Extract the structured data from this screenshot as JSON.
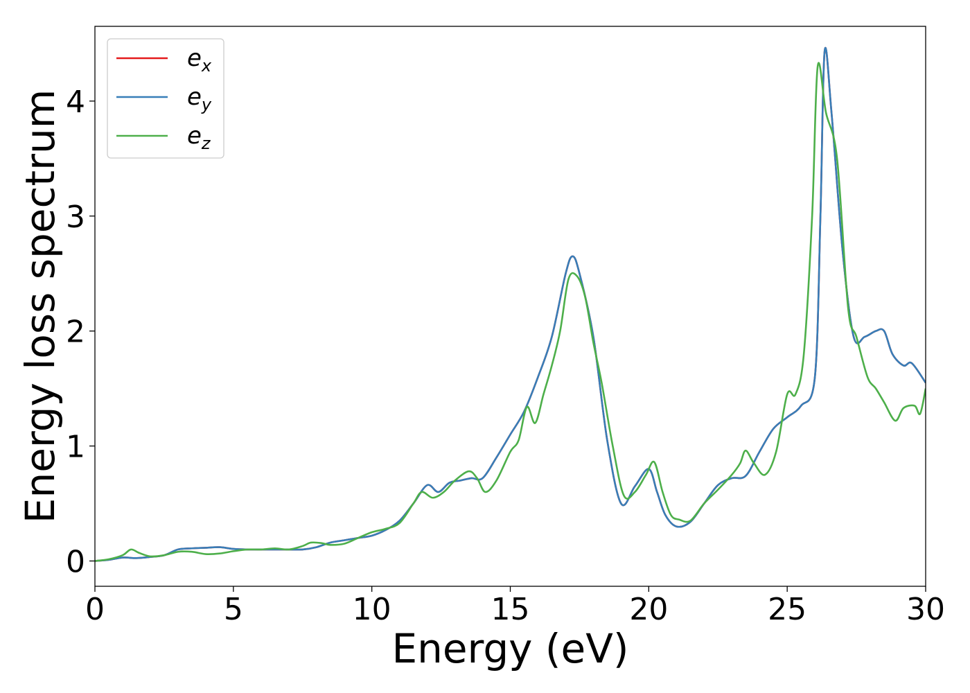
{
  "chart_data": {
    "type": "line",
    "title": "",
    "xlabel": "Energy (eV)",
    "ylabel": "Energy loss spectrum",
    "xlim": [
      0,
      30
    ],
    "ylim": [
      -0.22,
      4.65
    ],
    "xticks": [
      0,
      5,
      10,
      15,
      20,
      25,
      30
    ],
    "yticks": [
      0,
      1,
      2,
      3,
      4
    ],
    "grid": false,
    "legend_position": "top-left",
    "series": [
      {
        "name": "e",
        "subscript": "x",
        "color": "#e41a1c",
        "points": [
          [
            0,
            0
          ],
          [
            0.5,
            0.01
          ],
          [
            1,
            0.03
          ],
          [
            1.5,
            0.025
          ],
          [
            2,
            0.035
          ],
          [
            2.5,
            0.05
          ],
          [
            3,
            0.1
          ],
          [
            3.5,
            0.11
          ],
          [
            4,
            0.115
          ],
          [
            4.5,
            0.12
          ],
          [
            5,
            0.105
          ],
          [
            5.5,
            0.1
          ],
          [
            6,
            0.1
          ],
          [
            6.5,
            0.1
          ],
          [
            7,
            0.1
          ],
          [
            7.5,
            0.1
          ],
          [
            8,
            0.12
          ],
          [
            8.5,
            0.16
          ],
          [
            9,
            0.18
          ],
          [
            9.5,
            0.2
          ],
          [
            10,
            0.22
          ],
          [
            10.5,
            0.27
          ],
          [
            11,
            0.35
          ],
          [
            11.5,
            0.5
          ],
          [
            12,
            0.66
          ],
          [
            12.4,
            0.6
          ],
          [
            12.8,
            0.68
          ],
          [
            13.2,
            0.7
          ],
          [
            13.6,
            0.72
          ],
          [
            14,
            0.72
          ],
          [
            14.5,
            0.9
          ],
          [
            15,
            1.1
          ],
          [
            15.5,
            1.3
          ],
          [
            16,
            1.6
          ],
          [
            16.5,
            1.95
          ],
          [
            17,
            2.5
          ],
          [
            17.25,
            2.65
          ],
          [
            17.5,
            2.5
          ],
          [
            18,
            1.95
          ],
          [
            18.5,
            1.05
          ],
          [
            19,
            0.5
          ],
          [
            19.5,
            0.65
          ],
          [
            20,
            0.8
          ],
          [
            20.3,
            0.6
          ],
          [
            20.6,
            0.4
          ],
          [
            21,
            0.3
          ],
          [
            21.5,
            0.34
          ],
          [
            22,
            0.5
          ],
          [
            22.5,
            0.66
          ],
          [
            23,
            0.72
          ],
          [
            23.5,
            0.74
          ],
          [
            24,
            0.95
          ],
          [
            24.5,
            1.15
          ],
          [
            25,
            1.25
          ],
          [
            25.5,
            1.35
          ],
          [
            26,
            1.6
          ],
          [
            26.2,
            3.0
          ],
          [
            26.35,
            4.43
          ],
          [
            26.6,
            3.9
          ],
          [
            27,
            2.7
          ],
          [
            27.4,
            1.95
          ],
          [
            27.8,
            1.95
          ],
          [
            28.2,
            2.0
          ],
          [
            28.5,
            2.0
          ],
          [
            28.8,
            1.8
          ],
          [
            29.2,
            1.7
          ],
          [
            29.5,
            1.72
          ],
          [
            30,
            1.55
          ]
        ]
      },
      {
        "name": "e",
        "subscript": "y",
        "color": "#377eb8",
        "points": [
          [
            0,
            0
          ],
          [
            0.5,
            0.01
          ],
          [
            1,
            0.03
          ],
          [
            1.5,
            0.025
          ],
          [
            2,
            0.035
          ],
          [
            2.5,
            0.05
          ],
          [
            3,
            0.1
          ],
          [
            3.5,
            0.11
          ],
          [
            4,
            0.115
          ],
          [
            4.5,
            0.12
          ],
          [
            5,
            0.105
          ],
          [
            5.5,
            0.1
          ],
          [
            6,
            0.1
          ],
          [
            6.5,
            0.1
          ],
          [
            7,
            0.1
          ],
          [
            7.5,
            0.1
          ],
          [
            8,
            0.12
          ],
          [
            8.5,
            0.16
          ],
          [
            9,
            0.18
          ],
          [
            9.5,
            0.2
          ],
          [
            10,
            0.22
          ],
          [
            10.5,
            0.27
          ],
          [
            11,
            0.35
          ],
          [
            11.5,
            0.5
          ],
          [
            12,
            0.66
          ],
          [
            12.4,
            0.6
          ],
          [
            12.8,
            0.68
          ],
          [
            13.2,
            0.7
          ],
          [
            13.6,
            0.72
          ],
          [
            14,
            0.72
          ],
          [
            14.5,
            0.9
          ],
          [
            15,
            1.1
          ],
          [
            15.5,
            1.3
          ],
          [
            16,
            1.6
          ],
          [
            16.5,
            1.95
          ],
          [
            17,
            2.5
          ],
          [
            17.25,
            2.65
          ],
          [
            17.5,
            2.5
          ],
          [
            18,
            1.95
          ],
          [
            18.5,
            1.05
          ],
          [
            19,
            0.5
          ],
          [
            19.5,
            0.65
          ],
          [
            20,
            0.8
          ],
          [
            20.3,
            0.6
          ],
          [
            20.6,
            0.4
          ],
          [
            21,
            0.3
          ],
          [
            21.5,
            0.34
          ],
          [
            22,
            0.5
          ],
          [
            22.5,
            0.66
          ],
          [
            23,
            0.72
          ],
          [
            23.5,
            0.74
          ],
          [
            24,
            0.95
          ],
          [
            24.5,
            1.15
          ],
          [
            25,
            1.25
          ],
          [
            25.5,
            1.35
          ],
          [
            26,
            1.6
          ],
          [
            26.2,
            3.0
          ],
          [
            26.35,
            4.43
          ],
          [
            26.6,
            3.9
          ],
          [
            27,
            2.7
          ],
          [
            27.4,
            1.95
          ],
          [
            27.8,
            1.95
          ],
          [
            28.2,
            2.0
          ],
          [
            28.5,
            2.0
          ],
          [
            28.8,
            1.8
          ],
          [
            29.2,
            1.7
          ],
          [
            29.5,
            1.72
          ],
          [
            30,
            1.55
          ]
        ]
      },
      {
        "name": "e",
        "subscript": "z",
        "color": "#4daf4a",
        "points": [
          [
            0,
            0
          ],
          [
            0.5,
            0.015
          ],
          [
            1,
            0.05
          ],
          [
            1.3,
            0.1
          ],
          [
            1.6,
            0.07
          ],
          [
            2,
            0.04
          ],
          [
            2.5,
            0.05
          ],
          [
            3,
            0.08
          ],
          [
            3.5,
            0.08
          ],
          [
            4,
            0.06
          ],
          [
            4.5,
            0.065
          ],
          [
            5,
            0.085
          ],
          [
            5.5,
            0.1
          ],
          [
            6,
            0.1
          ],
          [
            6.5,
            0.11
          ],
          [
            7,
            0.1
          ],
          [
            7.5,
            0.13
          ],
          [
            7.8,
            0.16
          ],
          [
            8.2,
            0.155
          ],
          [
            8.5,
            0.14
          ],
          [
            9,
            0.15
          ],
          [
            9.5,
            0.2
          ],
          [
            10,
            0.25
          ],
          [
            10.5,
            0.28
          ],
          [
            11,
            0.33
          ],
          [
            11.5,
            0.5
          ],
          [
            11.8,
            0.6
          ],
          [
            12.2,
            0.55
          ],
          [
            12.6,
            0.6
          ],
          [
            13,
            0.7
          ],
          [
            13.5,
            0.78
          ],
          [
            13.8,
            0.72
          ],
          [
            14.1,
            0.6
          ],
          [
            14.5,
            0.7
          ],
          [
            15,
            0.95
          ],
          [
            15.3,
            1.05
          ],
          [
            15.6,
            1.34
          ],
          [
            15.9,
            1.2
          ],
          [
            16.2,
            1.45
          ],
          [
            16.5,
            1.7
          ],
          [
            16.8,
            2.0
          ],
          [
            17.1,
            2.45
          ],
          [
            17.4,
            2.48
          ],
          [
            17.7,
            2.3
          ],
          [
            18,
            1.9
          ],
          [
            18.3,
            1.55
          ],
          [
            18.7,
            1.0
          ],
          [
            19.1,
            0.57
          ],
          [
            19.5,
            0.6
          ],
          [
            19.9,
            0.75
          ],
          [
            20.2,
            0.86
          ],
          [
            20.5,
            0.6
          ],
          [
            20.8,
            0.4
          ],
          [
            21.1,
            0.36
          ],
          [
            21.5,
            0.35
          ],
          [
            22,
            0.5
          ],
          [
            22.5,
            0.62
          ],
          [
            23,
            0.75
          ],
          [
            23.3,
            0.85
          ],
          [
            23.5,
            0.96
          ],
          [
            23.8,
            0.85
          ],
          [
            24.2,
            0.75
          ],
          [
            24.6,
            0.95
          ],
          [
            25,
            1.45
          ],
          [
            25.3,
            1.45
          ],
          [
            25.6,
            1.8
          ],
          [
            25.9,
            3.0
          ],
          [
            26.1,
            4.3
          ],
          [
            26.4,
            3.9
          ],
          [
            26.8,
            3.5
          ],
          [
            27.2,
            2.2
          ],
          [
            27.5,
            1.95
          ],
          [
            27.9,
            1.6
          ],
          [
            28.2,
            1.5
          ],
          [
            28.5,
            1.38
          ],
          [
            28.9,
            1.22
          ],
          [
            29.2,
            1.33
          ],
          [
            29.6,
            1.35
          ],
          [
            29.8,
            1.28
          ],
          [
            30,
            1.5
          ]
        ]
      }
    ]
  }
}
